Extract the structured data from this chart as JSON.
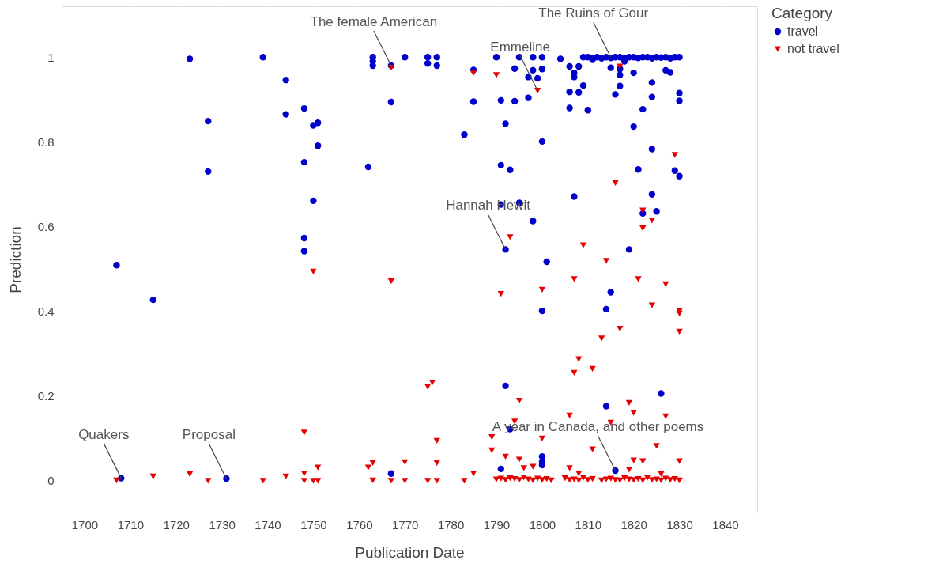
{
  "chart_data": {
    "type": "scatter",
    "xlabel": "Publication Date",
    "ylabel": "Prediction",
    "legend_title": "Category",
    "xlim": [
      1695,
      1847
    ],
    "ylim": [
      -0.075,
      1.12
    ],
    "xticks": [
      1700,
      1710,
      1720,
      1730,
      1740,
      1750,
      1760,
      1770,
      1780,
      1790,
      1800,
      1810,
      1820,
      1830,
      1840
    ],
    "yticks": [
      0,
      0.2,
      0.4,
      0.6,
      0.8,
      1
    ],
    "grid": true,
    "legend": "top right",
    "series": [
      {
        "name": "travel",
        "color": "#0000cd",
        "marker": "circle",
        "x": [
          1707,
          1715,
          1723,
          1727,
          1727,
          1739,
          1744,
          1744,
          1748,
          1748,
          1748,
          1748,
          1750,
          1751,
          1751,
          1750,
          1762,
          1763,
          1763,
          1763,
          1767,
          1767,
          1770,
          1767,
          1708,
          1731,
          1775,
          1775,
          1777,
          1777,
          1785,
          1785,
          1783,
          1791,
          1792,
          1791,
          1793,
          1794,
          1794,
          1797,
          1797,
          1798,
          1799,
          1800,
          1800,
          1790,
          1795,
          1798,
          1800,
          1804,
          1792,
          1791,
          1795,
          1798,
          1807,
          1806,
          1807,
          1807,
          1808,
          1806,
          1808,
          1809,
          1806,
          1810,
          1809,
          1810,
          1811,
          1812,
          1813,
          1814,
          1815,
          1816,
          1817,
          1818,
          1819,
          1820,
          1821,
          1822,
          1823,
          1824,
          1825,
          1826,
          1827,
          1828,
          1829,
          1830,
          1811,
          1815,
          1817,
          1818,
          1820,
          1827,
          1828,
          1817,
          1817,
          1816,
          1824,
          1824,
          1822,
          1820,
          1830,
          1830,
          1824,
          1821,
          1829,
          1830,
          1824,
          1822,
          1825,
          1819,
          1801,
          1815,
          1800,
          1814,
          1792,
          1826,
          1814,
          1793,
          1800,
          1800,
          1800,
          1791,
          1816
        ],
        "values": [
          0.509,
          0.427,
          0.996,
          0.849,
          0.73,
          1.0,
          0.946,
          0.865,
          0.879,
          0.752,
          0.573,
          0.542,
          0.839,
          0.845,
          0.791,
          0.661,
          0.741,
          1.0,
          0.99,
          0.98,
          0.98,
          0.894,
          1.0,
          0.017,
          0.006,
          0.005,
          1.0,
          0.985,
          1.0,
          0.98,
          0.97,
          0.895,
          0.817,
          0.898,
          0.843,
          0.745,
          0.734,
          0.973,
          0.896,
          0.904,
          0.953,
          0.969,
          0.95,
          0.972,
          0.801,
          1.0,
          1.0,
          1.0,
          1.0,
          0.996,
          0.546,
          0.652,
          0.656,
          0.613,
          0.671,
          0.978,
          0.963,
          0.953,
          0.978,
          0.918,
          0.917,
          0.933,
          0.88,
          0.875,
          1.0,
          1.0,
          0.998,
          1.0,
          0.997,
          1.0,
          0.998,
          1.0,
          1.0,
          0.997,
          1.0,
          1.0,
          0.998,
          1.0,
          1.0,
          0.997,
          1.0,
          0.999,
          1.0,
          0.997,
          1.0,
          1.0,
          0.994,
          0.975,
          0.972,
          0.99,
          0.963,
          0.969,
          0.964,
          0.958,
          0.932,
          0.912,
          0.94,
          0.906,
          0.877,
          0.836,
          0.915,
          0.897,
          0.783,
          0.735,
          0.732,
          0.719,
          0.676,
          0.631,
          0.636,
          0.546,
          0.517,
          0.445,
          0.401,
          0.405,
          0.224,
          0.206,
          0.176,
          0.122,
          0.057,
          0.045,
          0.037,
          0.028,
          0.024
        ]
      },
      {
        "name": "not travel",
        "color": "#e60000",
        "marker": "triangle-down",
        "x": [
          1707,
          1715,
          1723,
          1727,
          1739,
          1744,
          1748,
          1748,
          1748,
          1750,
          1751,
          1750,
          1751,
          1762,
          1763,
          1763,
          1767,
          1767,
          1767,
          1770,
          1770,
          1785,
          1790,
          1799,
          1817,
          1829,
          1816,
          1822,
          1824,
          1822,
          1793,
          1809,
          1814,
          1807,
          1821,
          1827,
          1791,
          1800,
          1824,
          1830,
          1830,
          1817,
          1830,
          1813,
          1808,
          1811,
          1807,
          1775,
          1776,
          1795,
          1819,
          1820,
          1827,
          1806,
          1794,
          1815,
          1777,
          1789,
          1800,
          1825,
          1789,
          1811,
          1777,
          1792,
          1795,
          1820,
          1822,
          1830,
          1785,
          1783,
          1775,
          1777,
          1796,
          1798,
          1806,
          1808,
          1819,
          1826,
          1790,
          1791,
          1792,
          1793,
          1794,
          1795,
          1796,
          1797,
          1798,
          1799,
          1800,
          1801,
          1802,
          1805,
          1806,
          1807,
          1808,
          1809,
          1810,
          1811,
          1813,
          1814,
          1815,
          1816,
          1817,
          1818,
          1819,
          1820,
          1821,
          1822,
          1823,
          1824,
          1825,
          1826,
          1827,
          1828,
          1829,
          1830
        ],
        "values": [
          0.001,
          0.01,
          0.016,
          0.0,
          0.0,
          0.01,
          0.114,
          0.017,
          0.0,
          0.494,
          0.031,
          0.0,
          0.0,
          0.031,
          0.042,
          0.001,
          0.975,
          0.471,
          0.0,
          0.044,
          0.0,
          0.963,
          0.958,
          0.921,
          0.978,
          0.769,
          0.703,
          0.638,
          0.614,
          0.596,
          0.575,
          0.556,
          0.519,
          0.476,
          0.476,
          0.464,
          0.441,
          0.451,
          0.414,
          0.401,
          0.352,
          0.359,
          0.395,
          0.336,
          0.287,
          0.264,
          0.255,
          0.222,
          0.232,
          0.189,
          0.184,
          0.16,
          0.152,
          0.154,
          0.14,
          0.137,
          0.094,
          0.103,
          0.1,
          0.082,
          0.072,
          0.074,
          0.042,
          0.057,
          0.05,
          0.048,
          0.046,
          0.046,
          0.017,
          0.0,
          0.0,
          0.0,
          0.03,
          0.033,
          0.03,
          0.017,
          0.026,
          0.016,
          0.003,
          0.005,
          0.002,
          0.006,
          0.004,
          0.002,
          0.008,
          0.003,
          0.001,
          0.005,
          0.002,
          0.004,
          0.001,
          0.006,
          0.002,
          0.003,
          0.001,
          0.007,
          0.002,
          0.004,
          0.001,
          0.003,
          0.005,
          0.002,
          0.001,
          0.006,
          0.003,
          0.002,
          0.004,
          0.001,
          0.007,
          0.002,
          0.003,
          0.001,
          0.005,
          0.002,
          0.004,
          0.001
        ]
      }
    ],
    "annotations": [
      {
        "text": "Quakers",
        "x": 1708,
        "y": 0.006
      },
      {
        "text": "Proposal",
        "x": 1731,
        "y": 0.005
      },
      {
        "text": "The female American",
        "x": 1767,
        "y": 0.98
      },
      {
        "text": "Emmeline",
        "x": 1799,
        "y": 0.921
      },
      {
        "text": "The Ruins of Gour",
        "x": 1815,
        "y": 1.0
      },
      {
        "text": "Hannah Hewit",
        "x": 1792,
        "y": 0.546
      },
      {
        "text": "A year in Canada, and other poems",
        "x": 1816,
        "y": 0.024
      }
    ]
  }
}
